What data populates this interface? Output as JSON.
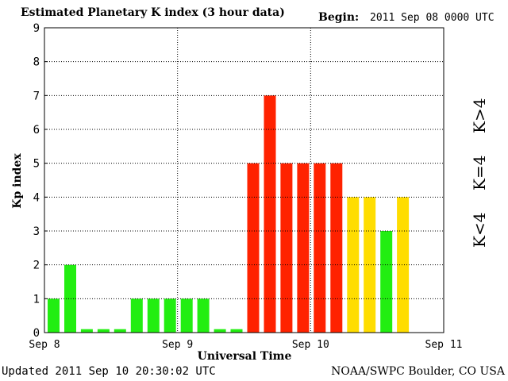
{
  "header": {
    "title": "Estimated Planetary K index (3 hour data)",
    "begin_label": "Begin:",
    "begin_value": "2011 Sep 08 0000 UTC"
  },
  "footer": {
    "updated": "Updated 2011 Sep 10 20:30:02 UTC",
    "source": "NOAA/SWPC Boulder, CO USA"
  },
  "legend": {
    "low": "K<4",
    "mid": "K=4",
    "high": "K>4"
  },
  "colors": {
    "low": "#22ee11",
    "mid": "#ffdd00",
    "high": "#ff2200",
    "grid": "#000000"
  },
  "chart_data": {
    "type": "bar",
    "title": "Estimated Planetary K index (3 hour data)",
    "xlabel": "Universal Time",
    "ylabel": "Kp index",
    "ylim": [
      0,
      9
    ],
    "yticks": [
      0,
      1,
      2,
      3,
      4,
      5,
      6,
      7,
      8,
      9
    ],
    "xticks": [
      "Sep 8",
      "Sep 9",
      "Sep 10",
      "Sep 11"
    ],
    "x_range": [
      "2011-09-08 00:00",
      "2011-09-11 00:00"
    ],
    "interval_hours": 3,
    "grid": true,
    "values": [
      1,
      2,
      0,
      0,
      0,
      1,
      1,
      1,
      1,
      1,
      0,
      0,
      5,
      7,
      5,
      5,
      5,
      5,
      4,
      4,
      3,
      4
    ]
  }
}
